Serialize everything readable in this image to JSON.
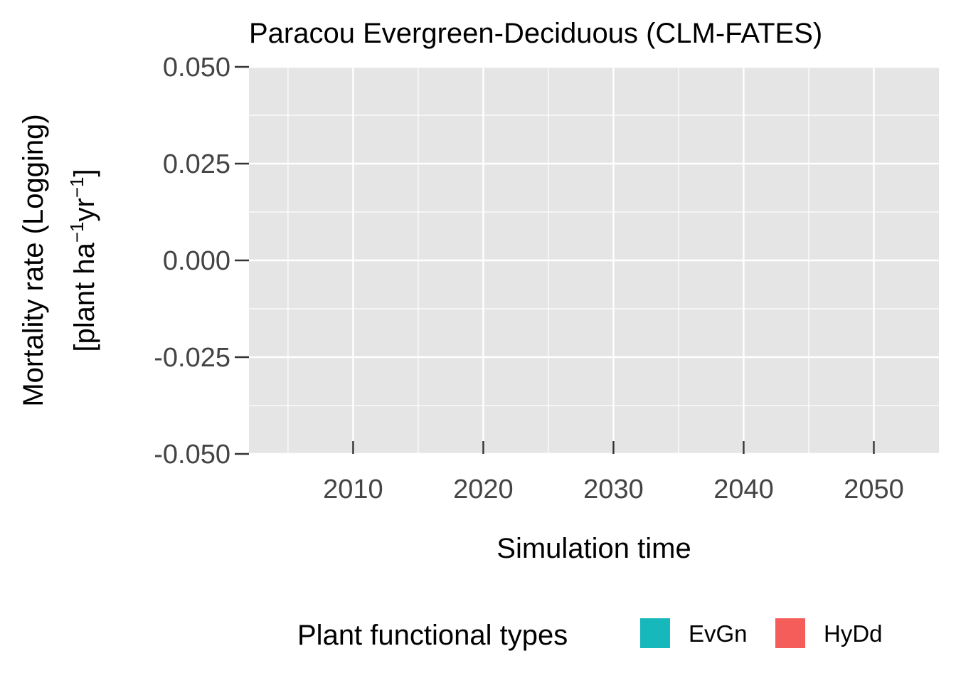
{
  "chart_data": {
    "type": "line",
    "title": "Paracou Evergreen-Deciduous (CLM-FATES)",
    "xlabel": "Simulation time",
    "ylabel_line1": "Mortality rate (Logging)",
    "ylabel_line2_parts": {
      "open": "[plant ha",
      "sup1": "−1",
      "mid": "yr",
      "sup2": "−1",
      "close": "]"
    },
    "xlim": [
      2002,
      2055
    ],
    "ylim": [
      -0.05,
      0.05
    ],
    "x_ticks": [
      2010,
      2020,
      2030,
      2040,
      2050
    ],
    "x_tick_labels": [
      "2010",
      "2020",
      "2030",
      "2040",
      "2050"
    ],
    "x_minor_ticks": [
      2005,
      2015,
      2025,
      2035,
      2045
    ],
    "y_ticks": [
      0.05,
      0.025,
      0.0,
      -0.025,
      -0.05
    ],
    "y_tick_labels": [
      "0.050",
      "0.025",
      "0.000",
      "-0.025",
      "-0.050"
    ],
    "y_minor_ticks": [
      0.0375,
      0.0125,
      -0.0125,
      -0.0375
    ],
    "grid": true,
    "legend_position": "bottom",
    "legend_title": "Plant functional types",
    "series": [
      {
        "name": "EvGn",
        "color": "#17b8bc",
        "x": [],
        "y": []
      },
      {
        "name": "HyDd",
        "color": "#f45d5a",
        "x": [],
        "y": []
      }
    ],
    "panel_background": "#e5e5e5",
    "grid_color": "#ffffff"
  }
}
